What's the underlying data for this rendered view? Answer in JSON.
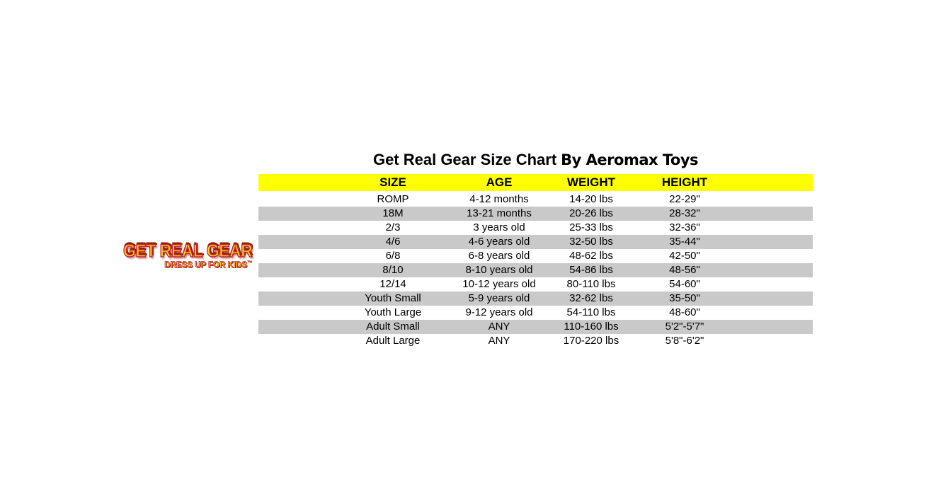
{
  "title": {
    "main": "Get Real Gear Size Chart",
    "by": "By Aeromax Toys"
  },
  "logo": {
    "line1": "GET REAL GEAR",
    "line2": "DRESS UP FOR KIDS",
    "tm": "™"
  },
  "colors": {
    "header_bg": "#ffff00",
    "alt_row_bg": "#c9c9c9",
    "logo_fill": "#ffd21f",
    "logo_stroke": "#c1272d",
    "logo_shadow": "#8f1e12"
  },
  "chart_data": {
    "type": "table",
    "title": "Get Real Gear Size Chart By Aeromax Toys",
    "columns": [
      "SIZE",
      "AGE",
      "WEIGHT",
      "HEIGHT"
    ],
    "rows": [
      [
        "ROMP",
        "4-12 months",
        "14-20 lbs",
        "22-29\""
      ],
      [
        "18M",
        "13-21 months",
        "20-26 lbs",
        "28-32\""
      ],
      [
        "2/3",
        "3 years old",
        "25-33 lbs",
        "32-36\""
      ],
      [
        "4/6",
        "4-6 years old",
        "32-50 lbs",
        "35-44\""
      ],
      [
        "6/8",
        "6-8 years old",
        "48-62 lbs",
        "42-50\""
      ],
      [
        "8/10",
        "8-10 years old",
        "54-86 lbs",
        "48-56\""
      ],
      [
        "12/14",
        "10-12 years old",
        "80-110 lbs",
        "54-60\""
      ],
      [
        "Youth Small",
        "5-9 years old",
        "32-62 lbs",
        "35-50\""
      ],
      [
        "Youth Large",
        "9-12 years old",
        "54-110 lbs",
        "48-60\""
      ],
      [
        "Adult Small",
        "ANY",
        "110-160 lbs",
        "5'2\"-5'7\""
      ],
      [
        "Adult Large",
        "ANY",
        "170-220 lbs",
        "5'8\"-6'2\""
      ]
    ],
    "layout": {
      "header_background": "#ffff00",
      "alternate_row_background": "#c9c9c9",
      "alternate_rows": "2nd, 4th, 6th, 8th, 10th data rows shaded",
      "text_alignment": "center per column"
    }
  }
}
